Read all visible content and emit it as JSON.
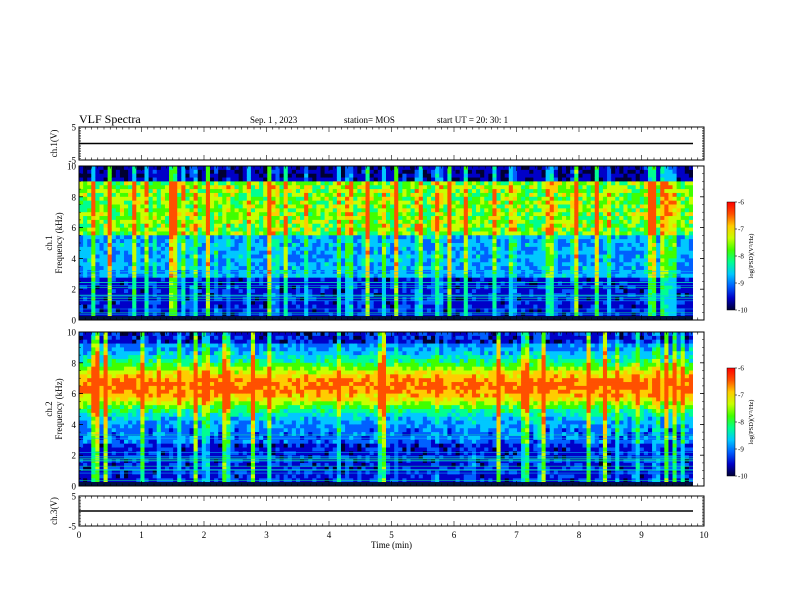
{
  "header": {
    "title": "VLF Spectra",
    "date": "Sep. 1 , 2023",
    "station": "station= MOS",
    "start_ut": "start  UT =   20: 30: 1"
  },
  "chart_data": [
    {
      "type": "line",
      "panel": "ch1-waveform",
      "ylabel": "ch.1(V)",
      "ylim": [
        -5,
        5
      ],
      "yticks": [
        "5",
        "-5"
      ],
      "series": [
        {
          "values": [
            0
          ]
        }
      ]
    },
    {
      "type": "heatmap",
      "panel": "ch1-spectrogram",
      "ylabel": "ch.1\nFrequency (kHz)",
      "ylim": [
        0,
        10
      ],
      "yticks": [
        "0",
        "2",
        "4",
        "6",
        "8",
        "10"
      ],
      "colorbar": {
        "label": "log(PSD)(V²/Hz)",
        "range": [
          -10,
          -6
        ],
        "ticks": [
          "-6",
          "-7",
          "-8",
          "-9",
          "-10"
        ]
      }
    },
    {
      "type": "heatmap",
      "panel": "ch2-spectrogram",
      "ylabel": "ch.2\nFrequency (kHz)",
      "ylim": [
        0,
        10
      ],
      "yticks": [
        "0",
        "2",
        "4",
        "6",
        "8",
        "10"
      ],
      "colorbar": {
        "label": "log(PSD)(V²/Hz)",
        "range": [
          -10,
          -6
        ],
        "ticks": [
          "-6",
          "-7",
          "-8",
          "-9",
          "-10"
        ]
      }
    },
    {
      "type": "line",
      "panel": "ch3-waveform",
      "ylabel": "ch.3(V)",
      "ylim": [
        -5,
        5
      ],
      "yticks": [
        "5",
        "-5"
      ],
      "xlabel": "Time (min)",
      "xlim": [
        0,
        10
      ],
      "xticks": [
        "0",
        "1",
        "2",
        "3",
        "4",
        "5",
        "6",
        "7",
        "8",
        "9",
        "10"
      ],
      "series": [
        {
          "values": [
            0
          ]
        }
      ]
    }
  ],
  "colors": {
    "background": "#ffffff",
    "axis": "#000000",
    "colormap": [
      "#000033",
      "#0000c8",
      "#0060ff",
      "#00c8ff",
      "#00ff90",
      "#40ff00",
      "#c8ff00",
      "#ffcc00",
      "#ff5000",
      "#ff0000",
      "#ffffff"
    ]
  }
}
